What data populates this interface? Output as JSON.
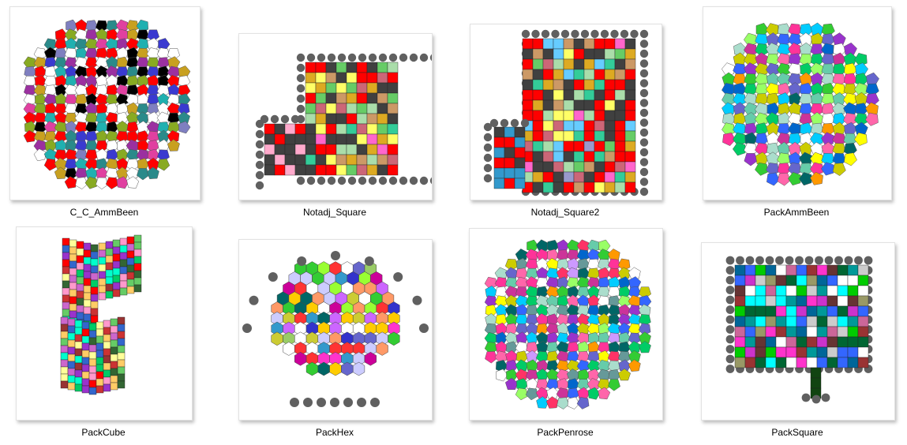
{
  "files": [
    {
      "label": "C_C_AmmBeen",
      "icon": "ammann-beenker-tiling-thumbnail"
    },
    {
      "label": "Notadj_Square",
      "icon": "square-grid-thumbnail"
    },
    {
      "label": "Notadj_Square2",
      "icon": "square-grid-thumbnail"
    },
    {
      "label": "PackAmmBeen",
      "icon": "ammann-beenker-tiling-thumbnail"
    },
    {
      "label": "PackCube",
      "icon": "cube-packing-thumbnail"
    },
    {
      "label": "PackHex",
      "icon": "hex-grid-thumbnail"
    },
    {
      "label": "PackPenrose",
      "icon": "penrose-tiling-thumbnail"
    },
    {
      "label": "PackSquare",
      "icon": "square-grid-thumbnail"
    }
  ],
  "palette": {
    "red": "#ff0000",
    "dark_gray": "#404040",
    "peg_gray": "#606060"
  }
}
